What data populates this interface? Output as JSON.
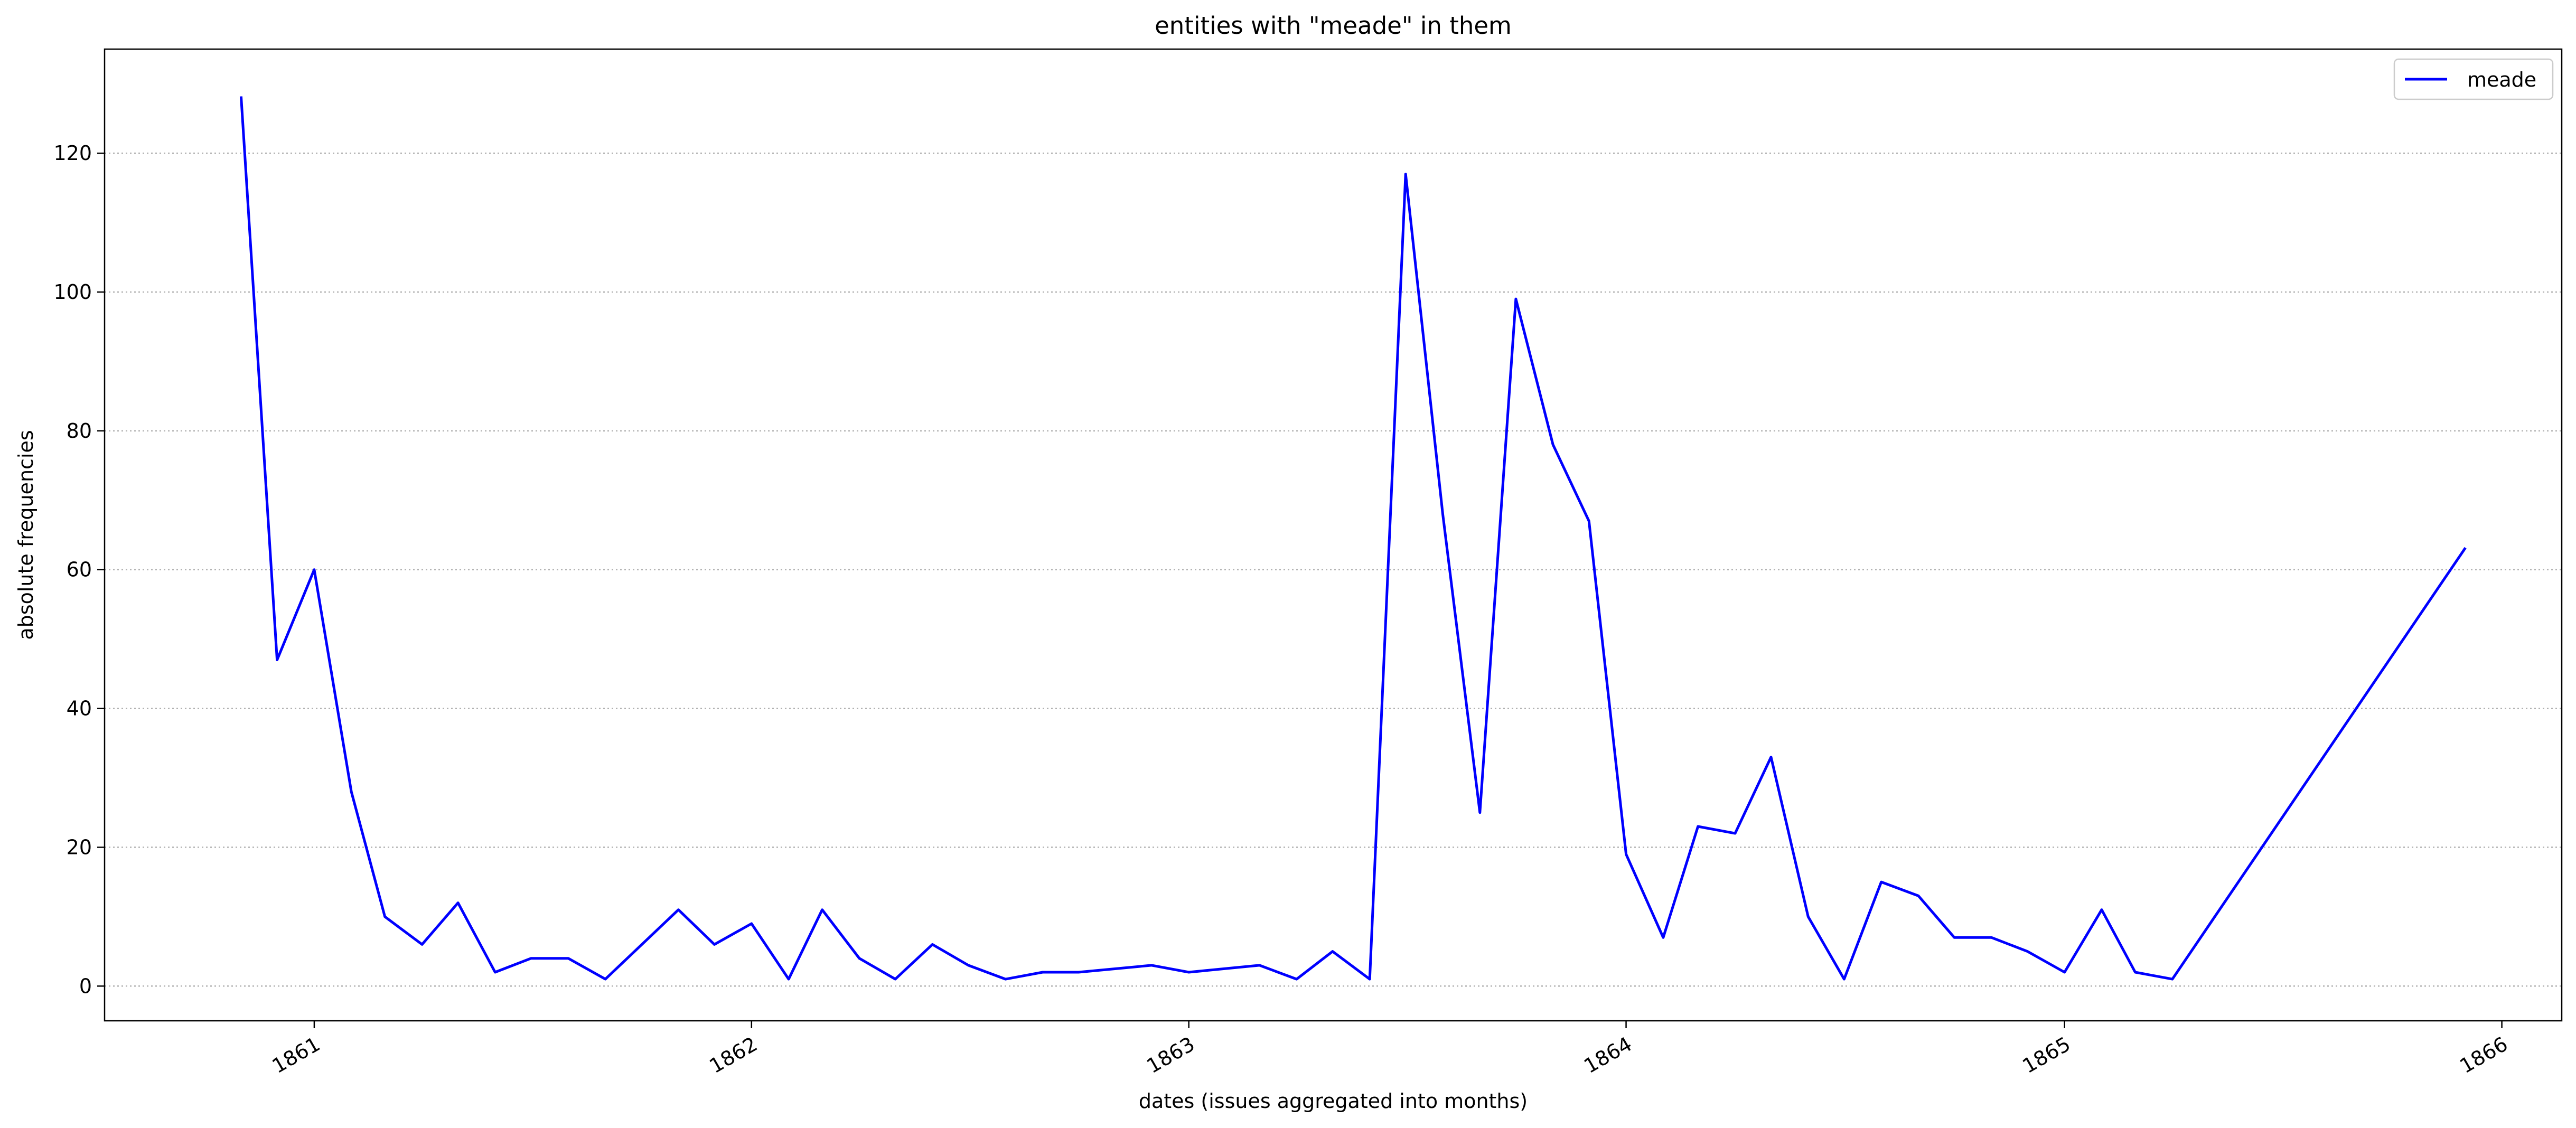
{
  "chart_data": {
    "type": "line",
    "title": "entities with \"meade\" in them",
    "xlabel": "dates (issues aggregated into months)",
    "ylabel": "absolute frequencies",
    "x_axis_type": "date",
    "xlim": [
      "1860-07-10",
      "1866-02-20"
    ],
    "ylim": [
      -5,
      135
    ],
    "x_ticks": [
      {
        "date": "1861-01-01",
        "label": "1861"
      },
      {
        "date": "1862-01-01",
        "label": "1862"
      },
      {
        "date": "1863-01-01",
        "label": "1863"
      },
      {
        "date": "1864-01-01",
        "label": "1864"
      },
      {
        "date": "1865-01-01",
        "label": "1865"
      },
      {
        "date": "1866-01-01",
        "label": "1866"
      }
    ],
    "y_ticks": [
      0,
      20,
      40,
      60,
      80,
      100,
      120
    ],
    "grid": "y-dotted",
    "legend_position": "top-right",
    "series": [
      {
        "name": "meade",
        "color": "#0000ff",
        "points": [
          [
            "1860-11-01",
            128
          ],
          [
            "1860-12-01",
            47
          ],
          [
            "1861-01-01",
            60
          ],
          [
            "1861-02-01",
            28
          ],
          [
            "1861-03-01",
            10
          ],
          [
            "1861-04-01",
            6
          ],
          [
            "1861-05-01",
            12
          ],
          [
            "1861-06-01",
            2
          ],
          [
            "1861-07-01",
            4
          ],
          [
            "1861-08-01",
            4
          ],
          [
            "1861-09-01",
            1
          ],
          [
            "1861-11-01",
            11
          ],
          [
            "1861-12-01",
            6
          ],
          [
            "1862-01-01",
            9
          ],
          [
            "1862-02-01",
            1
          ],
          [
            "1862-03-01",
            11
          ],
          [
            "1862-04-01",
            4
          ],
          [
            "1862-05-01",
            1
          ],
          [
            "1862-06-01",
            6
          ],
          [
            "1862-07-01",
            3
          ],
          [
            "1862-08-01",
            1
          ],
          [
            "1862-09-01",
            2
          ],
          [
            "1862-10-01",
            2
          ],
          [
            "1862-12-01",
            3
          ],
          [
            "1863-01-01",
            2
          ],
          [
            "1863-03-01",
            3
          ],
          [
            "1863-04-01",
            1
          ],
          [
            "1863-05-01",
            5
          ],
          [
            "1863-06-01",
            1
          ],
          [
            "1863-07-01",
            117
          ],
          [
            "1863-08-01",
            68
          ],
          [
            "1863-09-01",
            25
          ],
          [
            "1863-10-01",
            99
          ],
          [
            "1863-11-01",
            78
          ],
          [
            "1863-12-01",
            67
          ],
          [
            "1864-01-01",
            19
          ],
          [
            "1864-02-01",
            7
          ],
          [
            "1864-03-01",
            23
          ],
          [
            "1864-04-01",
            22
          ],
          [
            "1864-05-01",
            33
          ],
          [
            "1864-06-01",
            10
          ],
          [
            "1864-07-01",
            1
          ],
          [
            "1864-08-01",
            15
          ],
          [
            "1864-09-01",
            13
          ],
          [
            "1864-10-01",
            7
          ],
          [
            "1864-11-01",
            7
          ],
          [
            "1864-12-01",
            5
          ],
          [
            "1865-01-01",
            2
          ],
          [
            "1865-02-01",
            11
          ],
          [
            "1865-03-01",
            2
          ],
          [
            "1865-04-01",
            1
          ],
          [
            "1865-12-01",
            63
          ]
        ]
      }
    ]
  }
}
